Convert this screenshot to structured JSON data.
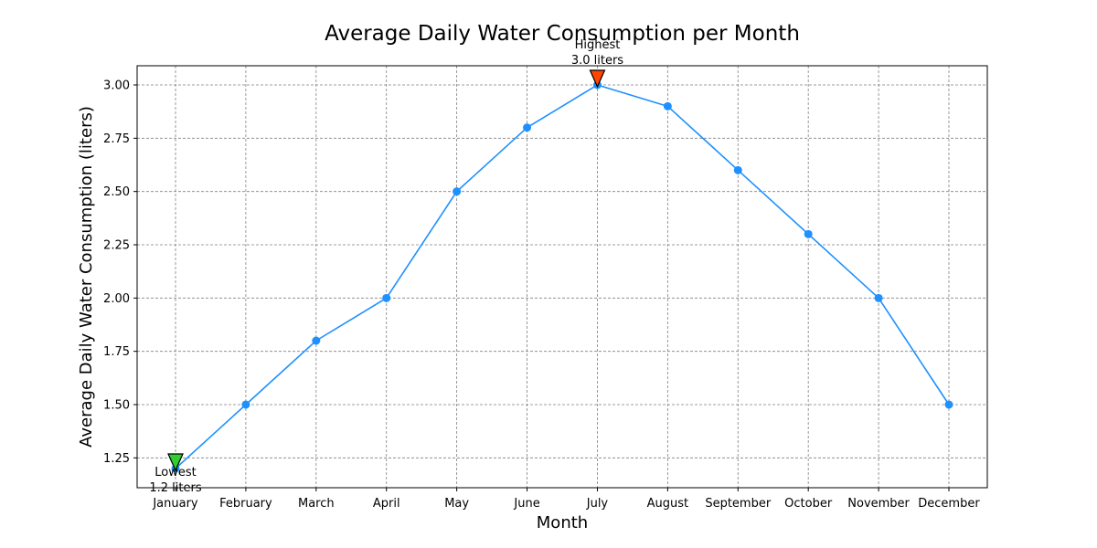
{
  "chart_data": {
    "type": "line",
    "title": "Average Daily Water Consumption per Month",
    "xlabel": "Month",
    "ylabel": "Average Daily Water Consumption (liters)",
    "categories": [
      "January",
      "February",
      "March",
      "April",
      "May",
      "June",
      "July",
      "August",
      "September",
      "October",
      "November",
      "December"
    ],
    "series": [
      {
        "values": [
          1.2,
          1.5,
          1.8,
          2.0,
          2.5,
          2.8,
          3.0,
          2.9,
          2.6,
          2.3,
          2.0,
          1.5
        ],
        "color": "#1e90ff"
      }
    ],
    "ylim": [
      1.11,
      3.09
    ],
    "yticks": [
      1.25,
      1.5,
      1.75,
      2.0,
      2.25,
      2.5,
      2.75,
      3.0
    ],
    "ytick_labels": [
      "1.25",
      "1.50",
      "1.75",
      "2.00",
      "2.25",
      "2.50",
      "2.75",
      "3.00"
    ],
    "grid": true,
    "annotations": [
      {
        "category": "July",
        "value": 3.0,
        "label_line1": "Highest",
        "label_line2": "3.0 liters",
        "marker": "triangle-down",
        "color": "#ff4500",
        "text_position": "above"
      },
      {
        "category": "January",
        "value": 1.2,
        "label_line1": "Lowest",
        "label_line2": "1.2 liters",
        "marker": "triangle-down",
        "color": "#32cd32",
        "text_position": "below"
      }
    ]
  }
}
